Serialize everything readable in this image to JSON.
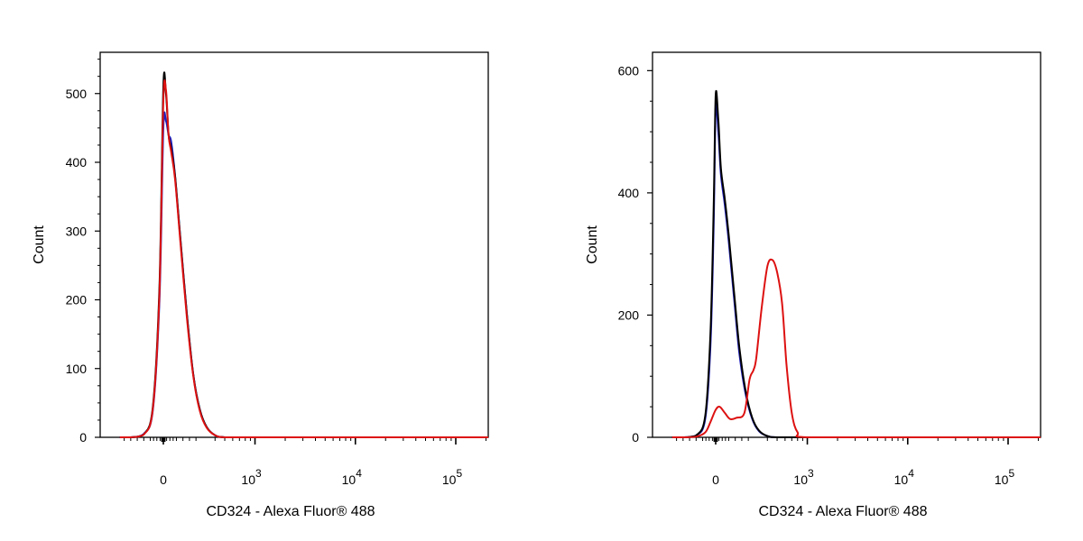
{
  "chart_data": [
    {
      "type": "line",
      "id": "left-panel",
      "xlabel": "CD324 - Alexa Fluor® 488",
      "ylabel": "Count",
      "ylim": [
        0,
        560
      ],
      "y_ticks": [
        {
          "value": 0,
          "label": "0"
        },
        {
          "value": 100,
          "label": "100"
        },
        {
          "value": 200,
          "label": "200"
        },
        {
          "value": 300,
          "label": "300"
        },
        {
          "value": 400,
          "label": "400"
        },
        {
          "value": 500,
          "label": "500"
        }
      ],
      "x_scale": "logicle",
      "x_ticks": [
        {
          "value": 0,
          "base": "0",
          "exp": ""
        },
        {
          "value": 1000,
          "base": "10",
          "exp": "3"
        },
        {
          "value": 10000,
          "base": "10",
          "exp": "4"
        },
        {
          "value": 100000,
          "base": "10",
          "exp": "5"
        }
      ],
      "series": [
        {
          "color": "#2020c0",
          "x": [
            -400,
            -250,
            -150,
            -80,
            -30,
            0,
            20,
            40,
            60,
            90,
            130,
            180,
            230,
            280,
            330,
            400,
            500,
            1000,
            10000,
            100000,
            250000
          ],
          "y": [
            0,
            0,
            5,
            40,
            200,
            450,
            460,
            440,
            430,
            380,
            290,
            180,
            90,
            40,
            15,
            3,
            0,
            0,
            0,
            0,
            0
          ]
        },
        {
          "color": "#000000",
          "x": [
            -400,
            -250,
            -150,
            -80,
            -30,
            0,
            20,
            40,
            60,
            90,
            130,
            180,
            230,
            280,
            330,
            400,
            500,
            1000,
            10000,
            100000,
            250000
          ],
          "y": [
            0,
            0,
            4,
            45,
            220,
            510,
            500,
            440,
            420,
            380,
            290,
            180,
            90,
            40,
            15,
            3,
            0,
            0,
            0,
            0,
            0
          ]
        },
        {
          "color": "#dd1111",
          "x": [
            -400,
            -250,
            -150,
            -80,
            -30,
            0,
            20,
            40,
            60,
            90,
            130,
            180,
            230,
            280,
            330,
            400,
            500,
            1000,
            10000,
            100000,
            250000
          ],
          "y": [
            0,
            0,
            4,
            42,
            210,
            490,
            505,
            440,
            415,
            375,
            285,
            175,
            88,
            38,
            14,
            3,
            0,
            0,
            0,
            0,
            0
          ]
        }
      ]
    },
    {
      "type": "line",
      "id": "right-panel",
      "xlabel": "CD324 - Alexa Fluor® 488",
      "ylabel": "Count",
      "ylim": [
        0,
        630
      ],
      "y_ticks": [
        {
          "value": 0,
          "label": "0"
        },
        {
          "value": 200,
          "label": "200"
        },
        {
          "value": 400,
          "label": "400"
        },
        {
          "value": 600,
          "label": "600"
        }
      ],
      "x_scale": "logicle",
      "x_ticks": [
        {
          "value": 0,
          "base": "0",
          "exp": ""
        },
        {
          "value": 1000,
          "base": "10",
          "exp": "3"
        },
        {
          "value": 10000,
          "base": "10",
          "exp": "4"
        },
        {
          "value": 100000,
          "base": "10",
          "exp": "5"
        }
      ],
      "series": [
        {
          "color": "#2020c0",
          "x": [
            -400,
            -250,
            -150,
            -80,
            -40,
            -15,
            0,
            20,
            40,
            70,
            100,
            140,
            180,
            230,
            280,
            330,
            400,
            500,
            1000,
            10000,
            100000,
            250000
          ],
          "y": [
            0,
            0,
            3,
            30,
            150,
            350,
            540,
            500,
            430,
            380,
            320,
            230,
            140,
            70,
            30,
            10,
            2,
            0,
            0,
            0,
            0,
            0
          ]
        },
        {
          "color": "#000000",
          "x": [
            -400,
            -250,
            -150,
            -80,
            -40,
            -15,
            0,
            20,
            40,
            70,
            100,
            140,
            180,
            230,
            280,
            330,
            400,
            500,
            1000,
            10000,
            100000,
            250000
          ],
          "y": [
            0,
            0,
            3,
            35,
            170,
            380,
            560,
            520,
            440,
            390,
            330,
            240,
            150,
            75,
            32,
            11,
            2,
            0,
            0,
            0,
            0,
            0
          ]
        },
        {
          "color": "#dd1111",
          "x": [
            -400,
            -250,
            -150,
            -80,
            -40,
            0,
            30,
            70,
            110,
            160,
            220,
            260,
            290,
            310,
            350,
            400,
            450,
            500,
            560,
            620,
            700,
            800,
            1000,
            10000,
            100000,
            250000
          ],
          "y": [
            0,
            0,
            1,
            8,
            25,
            45,
            50,
            40,
            30,
            32,
            40,
            95,
            110,
            130,
            210,
            280,
            290,
            270,
            220,
            120,
            40,
            8,
            0,
            0,
            0,
            0
          ]
        }
      ]
    }
  ]
}
